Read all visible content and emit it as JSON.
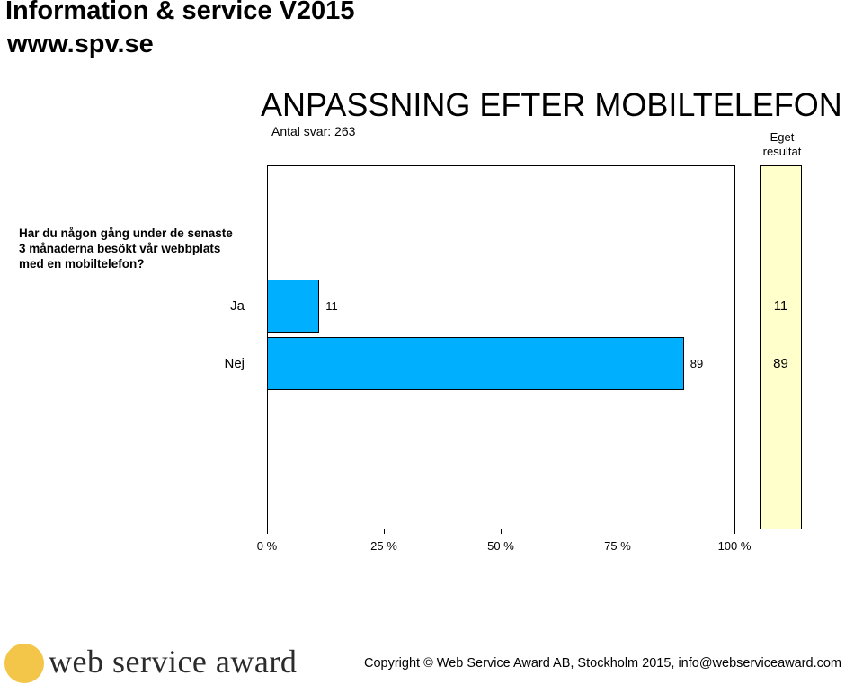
{
  "header": {
    "line1": "Information & service  V2015",
    "line2": "www.spv.se"
  },
  "chart_data": {
    "type": "bar",
    "orientation": "horizontal",
    "title": "ANPASSNING EFTER MOBILTELEFON",
    "subtitle": "Antal svar: 263",
    "question": "Har du någon gång under de senaste 3 månaderna besökt vår webbplats med en mobiltelefon?",
    "categories": [
      "Ja",
      "Nej"
    ],
    "values": [
      11,
      89
    ],
    "value_labels": [
      "11",
      "89"
    ],
    "own_result_label": "Eget resultat",
    "own_result_values": [
      "11",
      "89"
    ],
    "xlim": [
      0,
      100
    ],
    "xticks": [
      0,
      25,
      50,
      75,
      100
    ],
    "xtick_labels": [
      "0 %",
      "25 %",
      "50 %",
      "75 %",
      "100 %"
    ],
    "bar_color": "#00b0ff",
    "own_result_color": "#ffffcc",
    "grid": false
  },
  "footer": {
    "brand": "web service award",
    "copyright": "Copyright  © Web Service Award AB, Stockholm 2015, info@webserviceaward.com"
  }
}
